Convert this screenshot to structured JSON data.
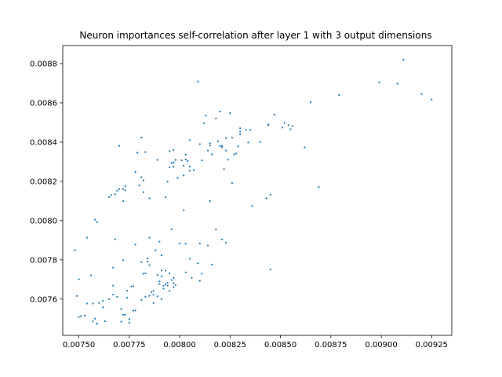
{
  "chart_data": {
    "type": "scatter",
    "title": "Neuron importances self-correlation after layer 1 with 3 output dimensions",
    "xlabel": "",
    "ylabel": "",
    "xlim": [
      0.00742,
      0.00935
    ],
    "ylim": [
      0.007415,
      0.008892
    ],
    "xticks": [
      "0.00750",
      "0.00775",
      "0.00800",
      "0.00825",
      "0.00850",
      "0.00875",
      "0.00900",
      "0.00925"
    ],
    "yticks": [
      "0.0076",
      "0.0078",
      "0.0080",
      "0.0082",
      "0.0084",
      "0.0086",
      "0.0088"
    ],
    "grid": false,
    "marker_color": "#1f77b4",
    "points": [
      [
        0.00748,
        0.007849
      ],
      [
        0.00749,
        0.007616
      ],
      [
        0.0075,
        0.007701
      ],
      [
        0.0075,
        0.007508
      ],
      [
        0.00751,
        0.007513
      ],
      [
        0.00754,
        0.007577
      ],
      [
        0.00753,
        0.007516
      ],
      [
        0.00754,
        0.007913
      ],
      [
        0.00756,
        0.007721
      ],
      [
        0.00757,
        0.007577
      ],
      [
        0.00757,
        0.007486
      ],
      [
        0.00759,
        0.007474
      ],
      [
        0.00758,
        0.0075
      ],
      [
        0.0076,
        0.00758
      ],
      [
        0.00758,
        0.008005
      ],
      [
        0.00759,
        0.007993
      ],
      [
        0.00759,
        0.007475
      ],
      [
        0.00762,
        0.007558
      ],
      [
        0.00762,
        0.007591
      ],
      [
        0.00763,
        0.007487
      ],
      [
        0.00765,
        0.0076
      ],
      [
        0.00765,
        0.00812
      ],
      [
        0.00766,
        0.00813
      ],
      [
        0.00767,
        0.007623
      ],
      [
        0.00767,
        0.007669
      ],
      [
        0.00767,
        0.00776
      ],
      [
        0.00768,
        0.007905
      ],
      [
        0.00768,
        0.008134
      ],
      [
        0.00769,
        0.008152
      ],
      [
        0.00769,
        0.007611
      ],
      [
        0.0077,
        0.008161
      ],
      [
        0.0077,
        0.008381
      ],
      [
        0.00771,
        0.007485
      ],
      [
        0.00772,
        0.008161
      ],
      [
        0.00772,
        0.008099
      ],
      [
        0.00772,
        0.00752
      ],
      [
        0.00771,
        0.00755
      ],
      [
        0.00772,
        0.007798
      ],
      [
        0.00773,
        0.00752
      ],
      [
        0.00773,
        0.008176
      ],
      [
        0.00773,
        0.008154
      ],
      [
        0.00774,
        0.007643
      ],
      [
        0.00774,
        0.007607
      ],
      [
        0.00775,
        0.00748
      ],
      [
        0.00776,
        0.007664
      ],
      [
        0.00775,
        0.007498
      ],
      [
        0.00777,
        0.007541
      ],
      [
        0.00777,
        0.007667
      ],
      [
        0.00778,
        0.007542
      ],
      [
        0.00778,
        0.007878
      ],
      [
        0.00778,
        0.008247
      ],
      [
        0.00779,
        0.008346
      ],
      [
        0.00781,
        0.008423
      ],
      [
        0.00781,
        0.008221
      ],
      [
        0.0078,
        0.008179
      ],
      [
        0.00781,
        0.007596
      ],
      [
        0.00781,
        0.007788
      ],
      [
        0.00782,
        0.007729
      ],
      [
        0.00782,
        0.008205
      ],
      [
        0.00782,
        0.008145
      ],
      [
        0.00783,
        0.008349
      ],
      [
        0.00783,
        0.007612
      ],
      [
        0.00783,
        0.007731
      ],
      [
        0.00784,
        0.007807
      ],
      [
        0.00784,
        0.00779
      ],
      [
        0.00785,
        0.007617
      ],
      [
        0.00785,
        0.008113
      ],
      [
        0.00785,
        0.007913
      ],
      [
        0.00785,
        0.007773
      ],
      [
        0.00786,
        0.007636
      ],
      [
        0.00787,
        0.007622
      ],
      [
        0.00787,
        0.00758
      ],
      [
        0.00787,
        0.007643
      ],
      [
        0.00788,
        0.007849
      ],
      [
        0.00789,
        0.007723
      ],
      [
        0.00789,
        0.007614
      ],
      [
        0.00789,
        0.008309
      ],
      [
        0.0079,
        0.007677
      ],
      [
        0.0079,
        0.007893
      ],
      [
        0.0079,
        0.00769
      ],
      [
        0.00791,
        0.007823
      ],
      [
        0.00791,
        0.007746
      ],
      [
        0.00791,
        0.007601
      ],
      [
        0.00792,
        0.007653
      ],
      [
        0.00791,
        0.007716
      ],
      [
        0.00792,
        0.007668
      ],
      [
        0.00793,
        0.008119
      ],
      [
        0.00793,
        0.007745
      ],
      [
        0.00793,
        0.007676
      ],
      [
        0.00794,
        0.008198
      ],
      [
        0.00794,
        0.007669
      ],
      [
        0.00794,
        0.007683
      ],
      [
        0.00795,
        0.008272
      ],
      [
        0.00795,
        0.007731
      ],
      [
        0.00795,
        0.007642
      ],
      [
        0.00796,
        0.008293
      ],
      [
        0.00795,
        0.008354
      ],
      [
        0.00796,
        0.007697
      ],
      [
        0.00796,
        0.007956
      ],
      [
        0.00797,
        0.007661
      ],
      [
        0.00797,
        0.00836
      ],
      [
        0.00797,
        0.008274
      ],
      [
        0.00797,
        0.008297
      ],
      [
        0.00797,
        0.007708
      ],
      [
        0.00797,
        0.007681
      ],
      [
        0.00798,
        0.007672
      ],
      [
        0.00798,
        0.008309
      ],
      [
        0.00799,
        0.008217
      ],
      [
        0.008,
        0.007883
      ],
      [
        0.00801,
        0.008307
      ],
      [
        0.00802,
        0.008053
      ],
      [
        0.00802,
        0.00823
      ],
      [
        0.00802,
        0.00828
      ],
      [
        0.00803,
        0.008336
      ],
      [
        0.00803,
        0.008312
      ],
      [
        0.00803,
        0.007736
      ],
      [
        0.00803,
        0.007882
      ],
      [
        0.00804,
        0.008304
      ],
      [
        0.00805,
        0.008254
      ],
      [
        0.00805,
        0.00841
      ],
      [
        0.00805,
        0.008275
      ],
      [
        0.00805,
        0.007806
      ],
      [
        0.00806,
        0.007708
      ],
      [
        0.00807,
        0.008257
      ],
      [
        0.00809,
        0.008709
      ],
      [
        0.00809,
        0.007782
      ],
      [
        0.0081,
        0.007693
      ],
      [
        0.0081,
        0.00839
      ],
      [
        0.0081,
        0.007883
      ],
      [
        0.00811,
        0.008307
      ],
      [
        0.00811,
        0.00773
      ],
      [
        0.00812,
        0.008496
      ],
      [
        0.00813,
        0.008535
      ],
      [
        0.00814,
        0.007873
      ],
      [
        0.00814,
        0.008357
      ],
      [
        0.00815,
        0.008382
      ],
      [
        0.00815,
        0.008394
      ],
      [
        0.00815,
        0.0081
      ],
      [
        0.00816,
        0.007776
      ],
      [
        0.00816,
        0.008337
      ],
      [
        0.00818,
        0.008521
      ],
      [
        0.00818,
        0.007955
      ],
      [
        0.00819,
        0.008403
      ],
      [
        0.0082,
        0.008556
      ],
      [
        0.0082,
        0.00838
      ],
      [
        0.00821,
        0.008381
      ],
      [
        0.00821,
        0.007904
      ],
      [
        0.00821,
        0.008373
      ],
      [
        0.00822,
        0.008262
      ],
      [
        0.00823,
        0.008357
      ],
      [
        0.00823,
        0.00842
      ],
      [
        0.00823,
        0.007888
      ],
      [
        0.00824,
        0.00831
      ],
      [
        0.00825,
        0.008548
      ],
      [
        0.00826,
        0.008192
      ],
      [
        0.00826,
        0.008422
      ],
      [
        0.00827,
        0.008337
      ],
      [
        0.00828,
        0.008342
      ],
      [
        0.00829,
        0.008378
      ],
      [
        0.0083,
        0.008453
      ],
      [
        0.0083,
        0.008471
      ],
      [
        0.0083,
        0.00844
      ],
      [
        0.00833,
        0.008462
      ],
      [
        0.00834,
        0.008398
      ],
      [
        0.00835,
        0.008462
      ],
      [
        0.00836,
        0.008075
      ],
      [
        0.0084,
        0.008401
      ],
      [
        0.00843,
        0.008114
      ],
      [
        0.00844,
        0.00849
      ],
      [
        0.00844,
        0.008486
      ],
      [
        0.00845,
        0.008132
      ],
      [
        0.00845,
        0.007751
      ],
      [
        0.00847,
        0.00854
      ],
      [
        0.00851,
        0.008474
      ],
      [
        0.00852,
        0.008497
      ],
      [
        0.00854,
        0.008486
      ],
      [
        0.00855,
        0.008466
      ],
      [
        0.00856,
        0.008482
      ],
      [
        0.00862,
        0.008373
      ],
      [
        0.00865,
        0.008603
      ],
      [
        0.00869,
        0.008171
      ],
      [
        0.00879,
        0.00864
      ],
      [
        0.00899,
        0.008705
      ],
      [
        0.00908,
        0.008698
      ],
      [
        0.00911,
        0.00882
      ],
      [
        0.0092,
        0.008645
      ],
      [
        0.00925,
        0.008617
      ]
    ]
  }
}
